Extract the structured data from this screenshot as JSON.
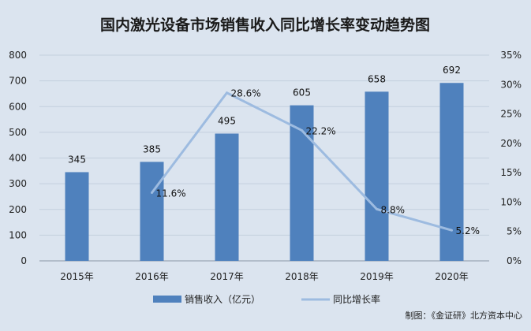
{
  "chart_data": {
    "type": "bar+line",
    "title": "国内激光设备市场销售收入同比增长率变动趋势图",
    "categories": [
      "2015年",
      "2016年",
      "2017年",
      "2018年",
      "2019年",
      "2020年"
    ],
    "series": [
      {
        "name": "销售收入（亿元）",
        "type": "bar",
        "axis": "left",
        "values": [
          345,
          385,
          495,
          605,
          658,
          692
        ],
        "labels": [
          "345",
          "385",
          "495",
          "605",
          "658",
          "692"
        ],
        "color": "#4f81bd"
      },
      {
        "name": "同比增长率",
        "type": "line",
        "axis": "right",
        "values": [
          null,
          11.6,
          28.6,
          22.2,
          8.8,
          5.2
        ],
        "labels": [
          "",
          "11.6%",
          "28.6%",
          "22.2%",
          "8.8%",
          "5.2%"
        ],
        "color": "#9dbbe0"
      }
    ],
    "y_left": {
      "min": 0,
      "max": 800,
      "step": 100,
      "ticks": [
        "0",
        "100",
        "200",
        "300",
        "400",
        "500",
        "600",
        "700",
        "800"
      ]
    },
    "y_right": {
      "min": 0,
      "max": 35,
      "step": 5,
      "ticks": [
        "0%",
        "5%",
        "10%",
        "15%",
        "20%",
        "25%",
        "30%",
        "35%"
      ]
    },
    "grid": true,
    "legend_position": "bottom"
  },
  "source": "制图：《金证研》北方资本中心"
}
